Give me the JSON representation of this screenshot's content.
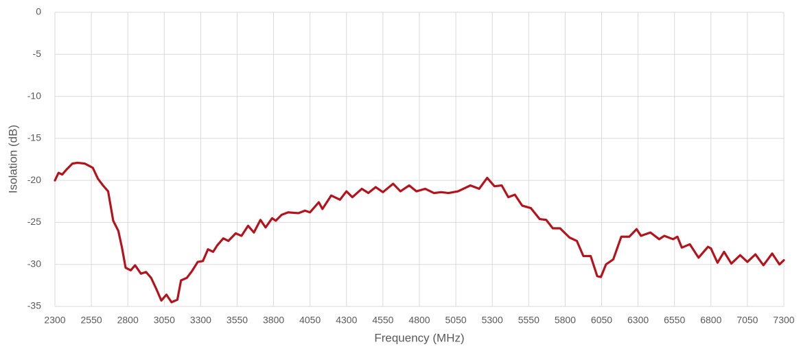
{
  "chart_data": {
    "type": "line",
    "x_label": "Frequency (MHz)",
    "y_label": "Isolation (dB)",
    "xlim": [
      2300,
      7300
    ],
    "xticks": [
      2300,
      2550,
      2800,
      3050,
      3300,
      3550,
      3800,
      4050,
      4300,
      4550,
      4800,
      5050,
      5300,
      5550,
      5800,
      6050,
      6300,
      6550,
      6800,
      7050,
      7300
    ],
    "ylim": [
      -35,
      0
    ],
    "yticks": [
      -35,
      -30,
      -25,
      -20,
      -15,
      -10,
      -5,
      0
    ],
    "grid": true,
    "series": [
      {
        "name": "Isolation",
        "color": "#b5121b",
        "x": [
          2300,
          2325,
          2350,
          2380,
          2420,
          2455,
          2505,
          2560,
          2595,
          2630,
          2665,
          2700,
          2735,
          2760,
          2785,
          2820,
          2850,
          2890,
          2925,
          2960,
          2995,
          3030,
          3065,
          3100,
          3140,
          3165,
          3205,
          3240,
          3280,
          3315,
          3350,
          3385,
          3415,
          3455,
          3490,
          3540,
          3580,
          3625,
          3665,
          3710,
          3745,
          3790,
          3815,
          3855,
          3900,
          3970,
          4015,
          4050,
          4110,
          4135,
          4195,
          4255,
          4300,
          4340,
          4405,
          4450,
          4500,
          4550,
          4620,
          4670,
          4730,
          4780,
          4840,
          4900,
          4950,
          5000,
          5065,
          5150,
          5210,
          5265,
          5315,
          5365,
          5410,
          5455,
          5505,
          5565,
          5625,
          5670,
          5715,
          5765,
          5830,
          5880,
          5925,
          5975,
          6020,
          6045,
          6080,
          6130,
          6185,
          6240,
          6290,
          6320,
          6385,
          6445,
          6480,
          6540,
          6570,
          6600,
          6655,
          6715,
          6780,
          6800,
          6845,
          6890,
          6940,
          7000,
          7050,
          7105,
          7160,
          7220,
          7270,
          7300
        ],
        "values": [
          -20,
          -19.1,
          -19.3,
          -18.7,
          -18,
          -17.9,
          -18,
          -18.5,
          -19.8,
          -20.6,
          -21.3,
          -24.8,
          -26,
          -28,
          -30.4,
          -30.7,
          -30.1,
          -31.1,
          -30.9,
          -31.6,
          -32.9,
          -34.3,
          -33.6,
          -34.5,
          -34.2,
          -31.9,
          -31.6,
          -30.8,
          -29.7,
          -29.6,
          -28.2,
          -28.5,
          -27.7,
          -26.9,
          -27.2,
          -26.3,
          -26.6,
          -25.4,
          -26.2,
          -24.7,
          -25.6,
          -24.5,
          -24.8,
          -24.1,
          -23.8,
          -23.9,
          -23.6,
          -23.8,
          -22.6,
          -23.4,
          -21.8,
          -22.3,
          -21.3,
          -22,
          -21,
          -21.5,
          -20.8,
          -21.4,
          -20.4,
          -21.3,
          -20.6,
          -21.3,
          -21,
          -21.5,
          -21.4,
          -21.5,
          -21.3,
          -20.6,
          -21,
          -19.7,
          -20.7,
          -20.6,
          -22,
          -21.7,
          -23,
          -23.3,
          -24.6,
          -24.7,
          -25.7,
          -25.7,
          -26.8,
          -27.2,
          -29,
          -29,
          -31.4,
          -31.5,
          -30,
          -29.4,
          -26.7,
          -26.7,
          -25.8,
          -26.6,
          -26.2,
          -27,
          -26.6,
          -27,
          -26.7,
          -28,
          -27.6,
          -29.2,
          -27.9,
          -28.1,
          -29.8,
          -28.5,
          -29.9,
          -28.9,
          -29.7,
          -28.8,
          -30.1,
          -28.7,
          -30,
          -29.5
        ]
      }
    ]
  }
}
